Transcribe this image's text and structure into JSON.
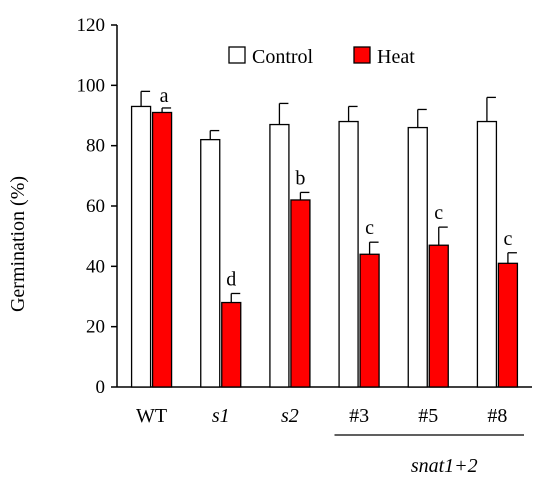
{
  "chart_data": {
    "type": "bar",
    "title": "",
    "xlabel": "",
    "ylabel": "Germination (%)",
    "ylim": [
      0,
      120
    ],
    "yticks": [
      0,
      20,
      40,
      60,
      80,
      100,
      120
    ],
    "categories": [
      "WT",
      "s1",
      "s2",
      "#3",
      "#5",
      "#8"
    ],
    "italic_categories": [
      "s1",
      "s2"
    ],
    "group_label": "snat1+2",
    "group_members": [
      "#3",
      "#5",
      "#8"
    ],
    "legend_position": "top-right",
    "grid": false,
    "series": [
      {
        "name": "Control",
        "color": "#ffffff",
        "values": [
          93,
          82,
          87,
          88,
          86,
          88
        ],
        "errors": [
          5,
          3,
          7,
          5,
          6,
          8
        ]
      },
      {
        "name": "Heat",
        "color": "#ff0000",
        "values": [
          91,
          28,
          62,
          44,
          47,
          41
        ],
        "errors": [
          1.5,
          3,
          2.5,
          4,
          6,
          3.5
        ]
      }
    ],
    "annotations": [
      "a",
      "d",
      "b",
      "c",
      "c",
      "c"
    ]
  }
}
